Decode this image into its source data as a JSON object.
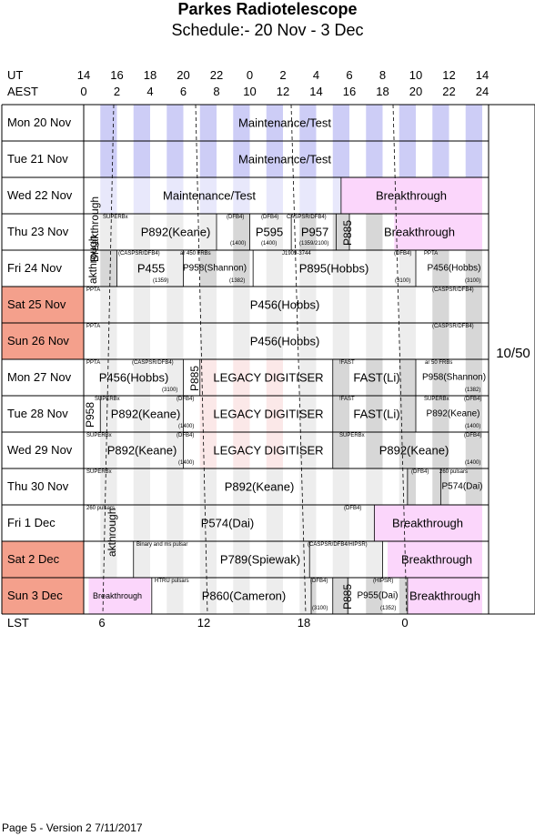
{
  "title": "Parkes Radiotelescope",
  "subtitle": "Schedule:- 20 Nov - 3  Dec",
  "ut_label": "UT",
  "aest_label": "AEST",
  "lst_label": "LST",
  "ut_ticks": [
    "14",
    "16",
    "18",
    "20",
    "22",
    "0",
    "2",
    "4",
    "6",
    "8",
    "10",
    "12",
    "14"
  ],
  "aest_ticks": [
    "0",
    "2",
    "4",
    "6",
    "8",
    "10",
    "12",
    "14",
    "16",
    "18",
    "20",
    "22",
    "24"
  ],
  "lst_ticks": [
    "6",
    "12",
    "18",
    "0"
  ],
  "days": [
    {
      "label": "Mon  20 Nov",
      "weekend": false
    },
    {
      "label": "Tue   21 Nov",
      "weekend": false
    },
    {
      "label": "Wed  22 Nov",
      "weekend": false
    },
    {
      "label": "Thu   23 Nov",
      "weekend": false
    },
    {
      "label": "Fri    24 Nov",
      "weekend": false
    },
    {
      "label": "Sat   25 Nov",
      "weekend": true
    },
    {
      "label": "Sun  26 Nov",
      "weekend": true
    },
    {
      "label": "Mon  27 Nov",
      "weekend": false
    },
    {
      "label": "Tue   28 Nov",
      "weekend": false
    },
    {
      "label": "Wed  29 Nov",
      "weekend": false
    },
    {
      "label": "Thu   30 Nov",
      "weekend": false
    },
    {
      "label": "Fri     1  Dec",
      "weekend": false
    },
    {
      "label": "Sat    2  Dec",
      "weekend": true
    },
    {
      "label": "Sun   3  Dec",
      "weekend": true
    }
  ],
  "projects": {
    "maint1": "Maintenance/Test",
    "maint2": "Maintenance/Test",
    "maint3": "Maintenance/Test",
    "bt_wed": "Breakthrough",
    "bt_vert_thu": "Breakthrough",
    "bt_vert_fri": "akthrough",
    "p892_thu": "P892(Keane)",
    "p595": "P595",
    "p957": "P957",
    "p885_thu": "P885",
    "bt_thu": "Breakthrough",
    "p455": "P455",
    "p958_fri": "P958(Shannon)",
    "p895": "P895(Hobbs)",
    "p456_fri": "P456(Hobbs)",
    "p456_sat": "P456(Hobbs)",
    "p456_sun": "P456(Hobbs)",
    "p456_mon": "P456(Hobbs)",
    "p885_mon": "P885",
    "legacy1": "LEGACY DIGITISER",
    "fast1": "FAST(Li)",
    "p958_mon": "P958(Shannon)",
    "p958_vert": "P958",
    "p892_tue": "P892(Keane)",
    "legacy2": "LEGACY DIGITISER",
    "fast2": "FAST(Li)",
    "p892_tue2": "P892(Keane)",
    "p892_wed": "P892(Keane)",
    "legacy3": "LEGACY DIGITISER",
    "p892_wed2": "P892(Keane)",
    "p892_thu30": "P892(Keane)",
    "p574_thu": "P574(Dai)",
    "p574_fri": "P574(Dai)",
    "bt_fri1": "Breakthrough",
    "bt_vert_fri1": "akthrough",
    "p789": "P789(Spiewak)",
    "bt_sat2": "Breakthrough",
    "bt_sun3_l": "Breakthrough",
    "p860": "P860(Cameron)",
    "p885_sun": "P885",
    "p955": "P955(Dai)",
    "bt_sun3": "Breakthrough"
  },
  "notes": {
    "n1": "SUPERBx",
    "n2": "(DFB4)",
    "n3": "(DFB4)",
    "n4": "CASPSR/DFB4)",
    "n5": "(CASPSR/DFB4)",
    "n6": "ar 450  FRBs",
    "n7": "J1909-3744",
    "n8": "(DFB4)",
    "n9": "PPTA",
    "n10": "PPTA",
    "n11": "(CASPSR/DFB4)",
    "n12": "PPTA",
    "n13": "(CASPSR/DFB4)",
    "n14": "PPTA",
    "n15": "(CASPSR/DFB4)",
    "n16": "!FAST",
    "n17": "ar   50  FRBs",
    "n18": "SUPERBx",
    "n19": "(DFB4)",
    "n20": "!FAST",
    "n21": "SUPERBx",
    "n22": "(DFB4)",
    "n23": "SUPERBx",
    "n24": "(DFB4)",
    "n25": "SUPERBx",
    "n26": "(DFB4)",
    "n27": "SUPERBx",
    "n28": "(DFB4)",
    "n29": "260 pulsars",
    "n30": "260 pulsars",
    "n31": "(DFB4)",
    "n32": "Binary and ms pulsar",
    "n33": "(CASPSR/DFB4/HIPSR)",
    "n34": "HTRU pulsars",
    "n35": "(DFB4)",
    "n36": "(HIPSR)",
    "n37": "(1400)",
    "n38": "(1400)",
    "n39": "(1359)",
    "n40": "(1382)",
    "n41": "(3100)",
    "n42": "(3100)",
    "n43": "(3100)",
    "n44": "(1400)",
    "n45": "(1352)",
    "n46": "(1400)",
    "n47": "(1400)",
    "n48": "(1400)",
    "n49": "(1359/2100)",
    "n50": "(3100)",
    "n51": "(1382)"
  },
  "side_label": "10/50",
  "footer": "Page 5 - Version 2  7/11/2017",
  "colors": {
    "stripe_grey": "#d3d3d3",
    "stripe_blue": "#c8c8f5",
    "stripe_pink": "#f5c8c8",
    "breakthrough": "#fbd6fb",
    "weekend": "#f4a08c",
    "grid": "#000000"
  }
}
